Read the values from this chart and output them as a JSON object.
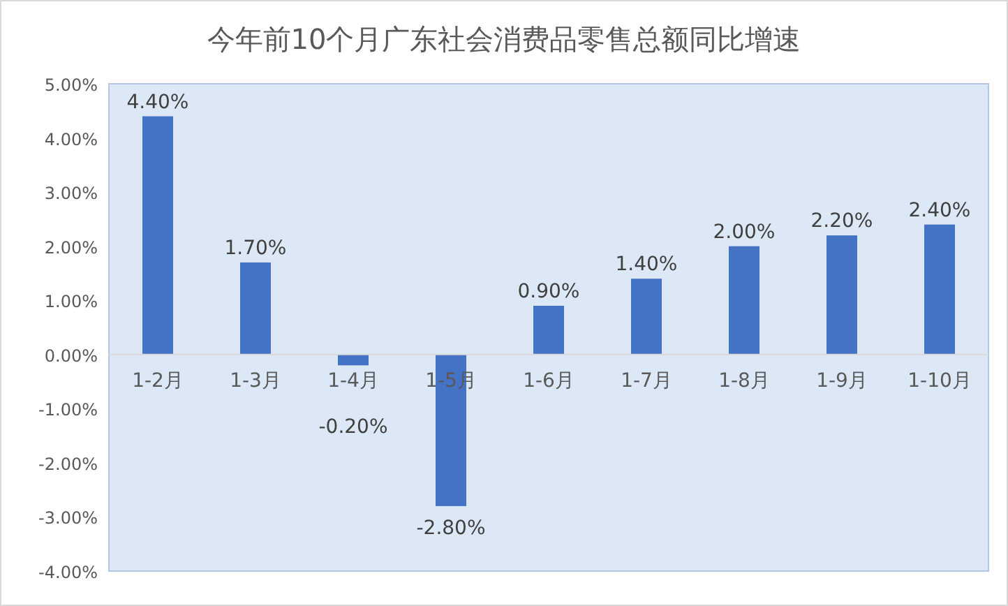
{
  "chart_data": {
    "type": "bar",
    "title": "今年前10个月广东社会消费品零售总额同比增速",
    "categories": [
      "1-2月",
      "1-3月",
      "1-4月",
      "1-5月",
      "1-6月",
      "1-7月",
      "1-8月",
      "1-9月",
      "1-10月"
    ],
    "values": [
      4.4,
      1.7,
      -0.2,
      -2.8,
      0.9,
      1.4,
      2.0,
      2.2,
      2.4
    ],
    "value_labels": [
      "4.40%",
      "1.70%",
      "-0.20%",
      "-2.80%",
      "0.90%",
      "1.40%",
      "2.00%",
      "2.20%",
      "2.40%"
    ],
    "color": "#4472c4",
    "ylim": [
      -4,
      5
    ],
    "yticks": [
      {
        "value": 5,
        "label": "5.00%"
      },
      {
        "value": 4,
        "label": "4.00%"
      },
      {
        "value": 3,
        "label": "3.00%"
      },
      {
        "value": 2,
        "label": "2.00%"
      },
      {
        "value": 1,
        "label": "1.00%"
      },
      {
        "value": 0,
        "label": "0.00%"
      },
      {
        "value": -1,
        "label": "-1.00%"
      },
      {
        "value": -2,
        "label": "-2.00%"
      },
      {
        "value": -3,
        "label": "-3.00%"
      },
      {
        "value": -4,
        "label": "-4.00%"
      }
    ],
    "grid": false
  }
}
